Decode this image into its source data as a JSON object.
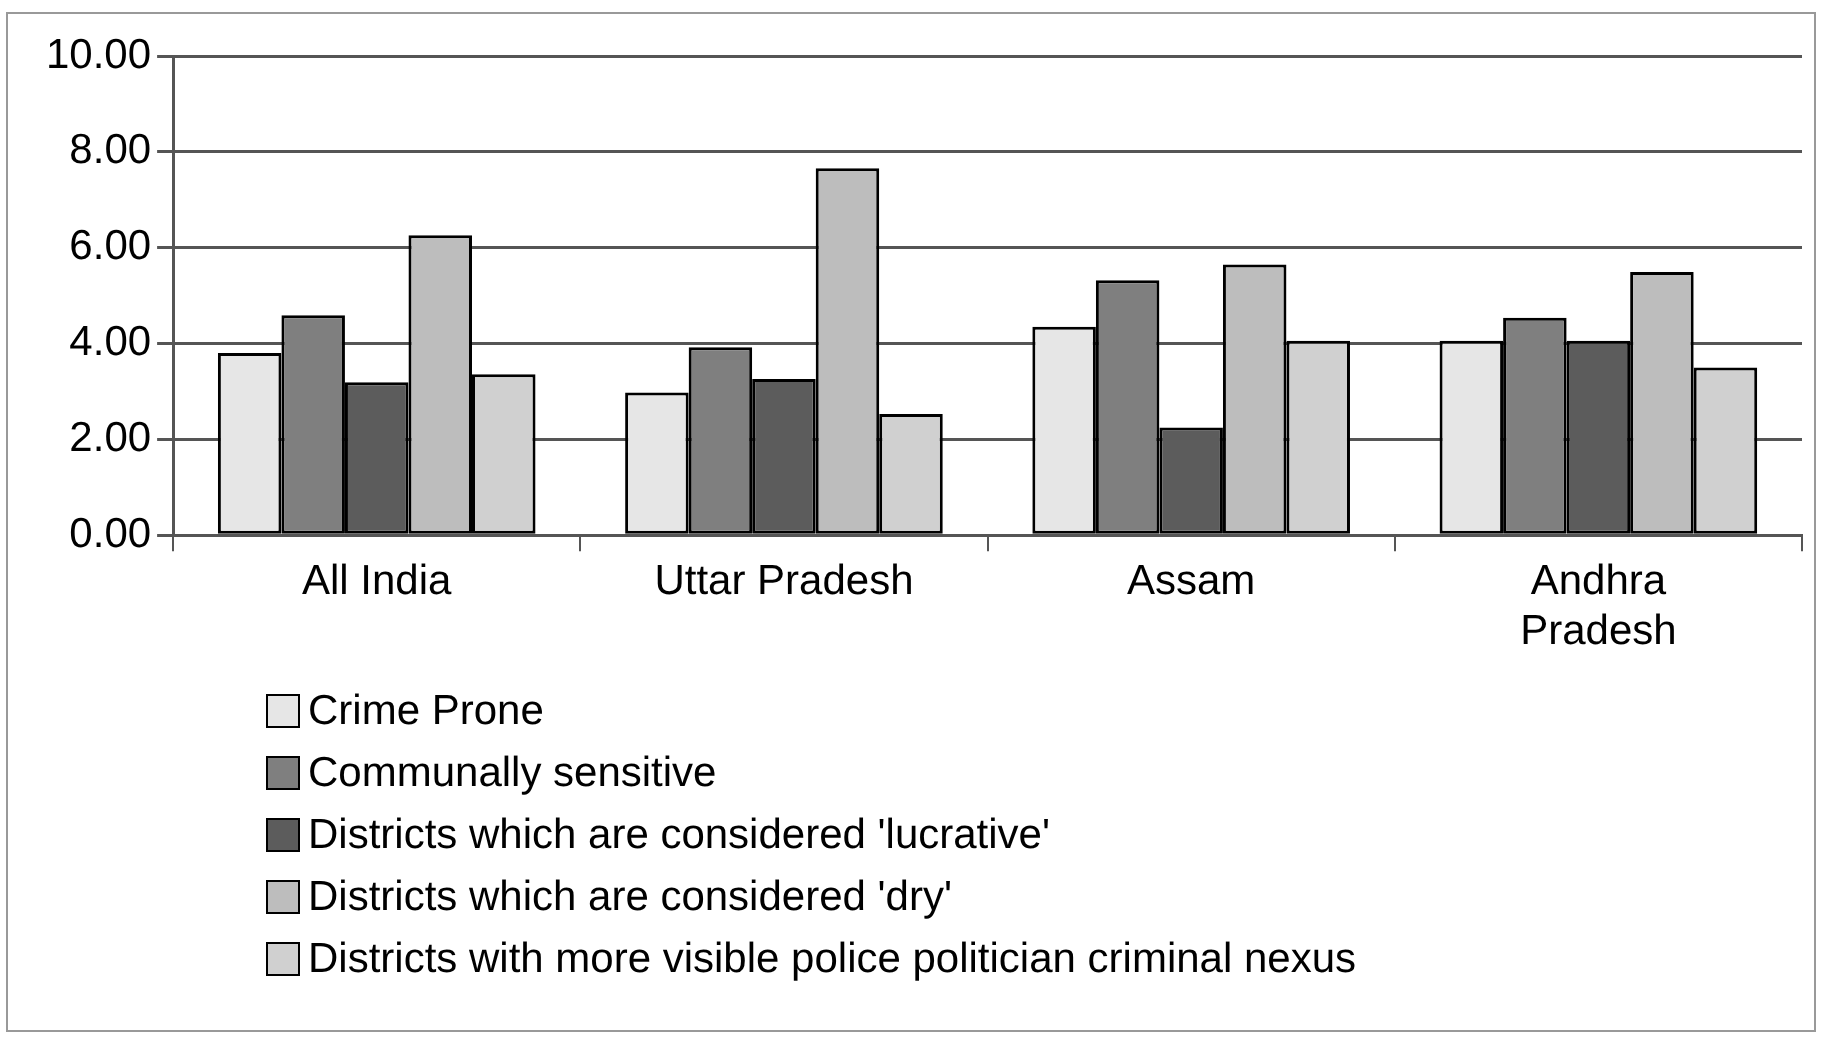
{
  "chart_data": {
    "type": "bar",
    "categories": [
      "All India",
      "Uttar Pradesh",
      "Assam",
      "Andhra Pradesh"
    ],
    "series": [
      {
        "name": "Crime Prone",
        "color": "#e6e6e6",
        "values": [
          3.8,
          2.98,
          4.35,
          4.06
        ]
      },
      {
        "name": "Communally sensitive",
        "color": "#7f7f7f",
        "values": [
          4.59,
          3.92,
          5.32,
          4.54
        ]
      },
      {
        "name": "Districts which are considered 'lucrative'",
        "color": "#5c5c5c",
        "values": [
          3.19,
          3.26,
          2.25,
          4.06
        ]
      },
      {
        "name": "Districts which are considered 'dry'",
        "color": "#bdbdbd",
        "values": [
          6.26,
          7.66,
          5.65,
          5.49
        ]
      },
      {
        "name": "Districts with more visible police politician criminal nexus",
        "color": "#d0d0d0",
        "values": [
          3.36,
          2.53,
          4.06,
          3.5
        ]
      }
    ],
    "ylim": [
      0,
      10
    ],
    "yticks": [
      {
        "value": 0,
        "label": "0.00"
      },
      {
        "value": 2,
        "label": "2.00"
      },
      {
        "value": 4,
        "label": "4.00"
      },
      {
        "value": 6,
        "label": "6.00"
      },
      {
        "value": 8,
        "label": "8.00"
      },
      {
        "value": 10,
        "label": "10.00"
      }
    ],
    "grid": "y",
    "legend": "bottom"
  }
}
